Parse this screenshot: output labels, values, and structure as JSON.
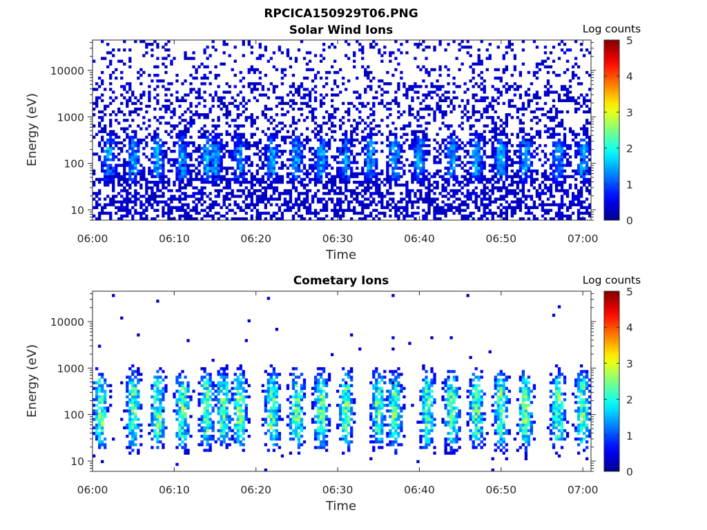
{
  "figure": {
    "filename_title": "RPCICA150929T06.PNG"
  },
  "colormap": [
    "#00008f",
    "#0000ff",
    "#0080ff",
    "#00ffff",
    "#80ff80",
    "#ffff00",
    "#ff8000",
    "#ff0000",
    "#800000"
  ],
  "chart_data": [
    {
      "type": "heatmap",
      "title": "Solar Wind Ions",
      "xlabel": "Time",
      "ylabel": "Energy (eV)",
      "x_range": [
        "06:00",
        "07:01"
      ],
      "x_ticks": [
        "06:00",
        "06:10",
        "06:20",
        "06:30",
        "06:40",
        "06:50",
        "07:00"
      ],
      "y_scale": "log",
      "y_range": [
        6,
        45000
      ],
      "y_ticks": [
        {
          "value": 10,
          "label": "10"
        },
        {
          "value": 100,
          "label": "100"
        },
        {
          "value": 1000,
          "label": "1000"
        },
        {
          "value": 10000,
          "label": "10000"
        }
      ],
      "colorbar": {
        "label": "Log counts",
        "range": [
          0,
          5
        ],
        "ticks": [
          "0",
          "1",
          "2",
          "3",
          "4",
          "5"
        ]
      },
      "grid": false,
      "pattern": {
        "background_sparse_log_counts": 0.2,
        "background_density": 0.28,
        "low_energy_dense_band_eV": [
          6,
          60
        ],
        "burst_times": [
          "06:02",
          "06:05",
          "06:08",
          "06:11",
          "06:14",
          "06:15",
          "06:18",
          "06:22",
          "06:25",
          "06:28",
          "06:31",
          "06:34",
          "06:37",
          "06:40",
          "06:44",
          "06:47",
          "06:50",
          "06:53",
          "06:57",
          "07:00"
        ],
        "burst_energy_eV": [
          40,
          400
        ],
        "burst_peak_log_counts": 1.6
      }
    },
    {
      "type": "heatmap",
      "title": "Cometary Ions",
      "xlabel": "Time",
      "ylabel": "Energy (eV)",
      "x_range": [
        "06:00",
        "07:01"
      ],
      "x_ticks": [
        "06:00",
        "06:10",
        "06:20",
        "06:30",
        "06:40",
        "06:50",
        "07:00"
      ],
      "y_scale": "log",
      "y_range": [
        6,
        45000
      ],
      "y_ticks": [
        {
          "value": 10,
          "label": "10"
        },
        {
          "value": 100,
          "label": "100"
        },
        {
          "value": 1000,
          "label": "1000"
        },
        {
          "value": 10000,
          "label": "10000"
        }
      ],
      "colorbar": {
        "label": "Log counts",
        "range": [
          0,
          5
        ],
        "ticks": [
          "0",
          "1",
          "2",
          "3",
          "4",
          "5"
        ]
      },
      "grid": false,
      "pattern": {
        "background_sparse_log_counts": 0.2,
        "background_density": 0.01,
        "burst_times": [
          "06:01",
          "06:05",
          "06:08",
          "06:11",
          "06:14",
          "06:16",
          "06:18",
          "06:22",
          "06:25",
          "06:28",
          "06:31",
          "06:35",
          "06:37",
          "06:41",
          "06:44",
          "06:47",
          "06:50",
          "06:53",
          "06:57",
          "07:00"
        ],
        "burst_energy_eV": [
          20,
          800
        ],
        "burst_peak_log_counts": 2.6
      }
    }
  ]
}
